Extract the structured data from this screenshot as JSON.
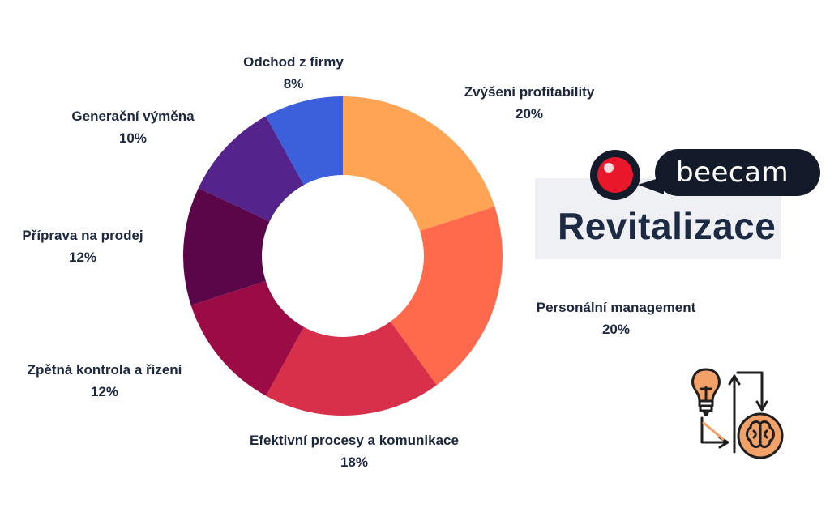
{
  "chart_data": {
    "type": "pie",
    "variant": "donut",
    "categories": [
      "Zvýšení profitability",
      "Personální management",
      "Efektivní procesy a komunikace",
      "Zpětná kontrola a řízení",
      "Příprava na prodej",
      "Generační výměna",
      "Odchod z firmy"
    ],
    "values": [
      20,
      20,
      18,
      12,
      12,
      10,
      8
    ],
    "value_labels": [
      "20%",
      "20%",
      "18%",
      "12%",
      "12%",
      "10%",
      "8%"
    ],
    "colors": [
      "#ffa354",
      "#ff6a4c",
      "#d8304a",
      "#9b0b46",
      "#5b0648",
      "#55238c",
      "#3c5fdb"
    ],
    "legend": "none"
  },
  "brand": {
    "logo_text": "beecam",
    "title": "Revitalizace",
    "logo_dot_color": "#e8182a",
    "logo_bg_color": "#131b2b"
  },
  "icons": [
    "logo-eye-icon",
    "lightbulb-brain-cycle-icon"
  ]
}
